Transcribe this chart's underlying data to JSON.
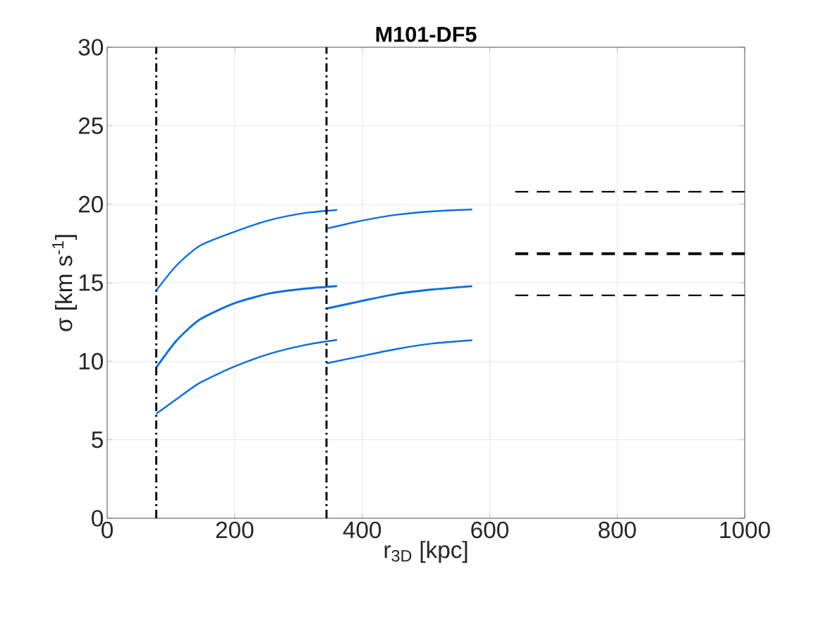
{
  "chart_data": {
    "type": "line",
    "title": "M101-DF5",
    "xlabel": "r$_{3D}$ [kpc]",
    "ylabel": "σ [km s$^{-1}$]",
    "xlim": [
      0,
      1000
    ],
    "ylim": [
      0,
      30
    ],
    "xticks": [
      0,
      200,
      400,
      600,
      800,
      1000
    ],
    "yticks": [
      0,
      5,
      10,
      15,
      20,
      25,
      30
    ],
    "grid": true,
    "line_style": "solid",
    "series": [
      {
        "color": "#0a6fdc",
        "x": [
          77,
          108.5,
          145.4,
          200,
          256,
          311.4,
          360.5
        ],
        "values": [
          14.52,
          16.09,
          17.36,
          18.25,
          19.0,
          19.45,
          19.64
        ]
      },
      {
        "color": "#0a6fdc",
        "x": [
          77,
          108.5,
          145.4,
          200,
          256,
          311.4,
          360.5
        ],
        "values": [
          9.6,
          11.31,
          12.66,
          13.7,
          14.33,
          14.63,
          14.79
        ]
      },
      {
        "color": "#0a6fdc",
        "x": [
          77,
          108.5,
          145.4,
          200,
          256,
          311.4,
          360.5
        ],
        "values": [
          6.66,
          7.58,
          8.63,
          9.67,
          10.49,
          11.04,
          11.36
        ]
      },
      {
        "color": "#0a6fdc",
        "x": [
          344.6,
          400,
          455.3,
          510.6,
          572.6
        ],
        "values": [
          18.45,
          18.96,
          19.34,
          19.55,
          19.67
        ]
      },
      {
        "color": "#0a6fdc",
        "x": [
          344.6,
          400,
          455.3,
          510.6,
          572.6
        ],
        "values": [
          13.36,
          13.85,
          14.3,
          14.57,
          14.78
        ]
      },
      {
        "color": "#0a6fdc",
        "x": [
          344.6,
          400,
          455.3,
          510.6,
          572.6
        ],
        "values": [
          9.87,
          10.34,
          10.79,
          11.13,
          11.34
        ]
      },
      {
        "color": "#000000",
        "line_style": "dashed",
        "x": [
          640,
          1000
        ],
        "values": [
          20.8,
          20.8
        ]
      },
      {
        "color": "#000000",
        "line_style": "dashed",
        "x": [
          640,
          1000
        ],
        "values": [
          16.85,
          16.85
        ]
      },
      {
        "color": "#000000",
        "line_style": "dashed",
        "x": [
          640,
          1000
        ],
        "values": [
          14.2,
          14.2
        ]
      }
    ],
    "ref_lines": [
      {
        "axis": "x",
        "value": 77,
        "color": "#000000",
        "line_style": "dashdot"
      },
      {
        "axis": "x",
        "value": 344,
        "color": "#000000",
        "line_style": "dashdot"
      }
    ]
  }
}
